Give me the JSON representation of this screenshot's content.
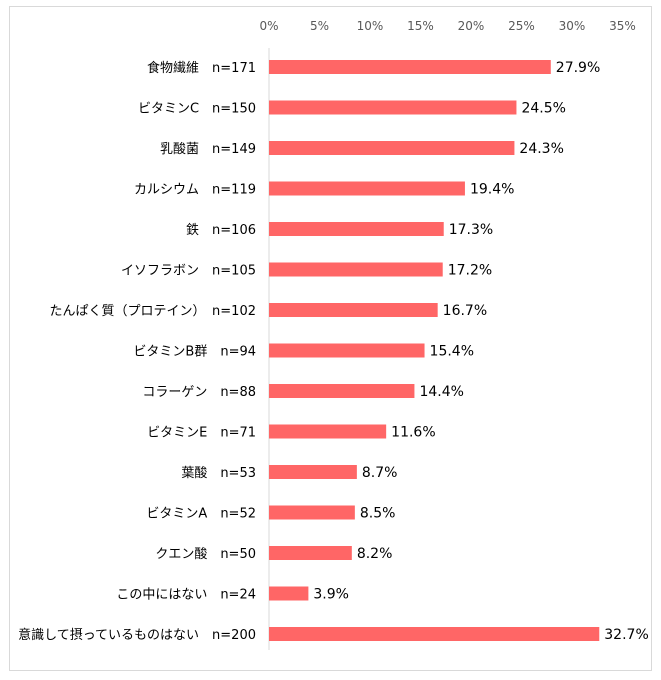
{
  "chart_data": {
    "type": "bar",
    "orientation": "horizontal",
    "title": "",
    "xlabel": "",
    "ylabel": "",
    "xlim": [
      0,
      35
    ],
    "xticks": [
      0,
      5,
      10,
      15,
      20,
      25,
      30,
      35
    ],
    "tick_labels": [
      "0%",
      "5%",
      "10%",
      "15%",
      "20%",
      "25%",
      "30%",
      "35%"
    ],
    "tick_position": "top",
    "grid": false,
    "legend": "none",
    "bar_color": "#ff6666",
    "categories": [
      "食物繊維　n=171",
      "ビタミンC　n=150",
      "乳酸菌　n=149",
      "カルシウム　n=119",
      "鉄　n=106",
      "イソフラボン　n=105",
      "たんぱく質（プロテイン）　n=102",
      "ビタミンB群　n=94",
      "コラーゲン　n=88",
      "ビタミンE　n=71",
      "葉酸　n=53",
      "ビタミンA　n=52",
      "クエン酸　n=50",
      "この中にはない　n=24",
      "意識して摂っているものはない　n=200"
    ],
    "values": [
      27.9,
      24.5,
      24.3,
      19.4,
      17.3,
      17.2,
      16.7,
      15.4,
      14.4,
      11.6,
      8.7,
      8.5,
      8.2,
      3.9,
      32.7
    ],
    "value_labels": [
      "27.9%",
      "24.5%",
      "24.3%",
      "19.4%",
      "17.3%",
      "17.2%",
      "16.7%",
      "15.4%",
      "14.4%",
      "11.6%",
      "8.7%",
      "8.5%",
      "8.2%",
      "3.9%",
      "32.7%"
    ]
  }
}
